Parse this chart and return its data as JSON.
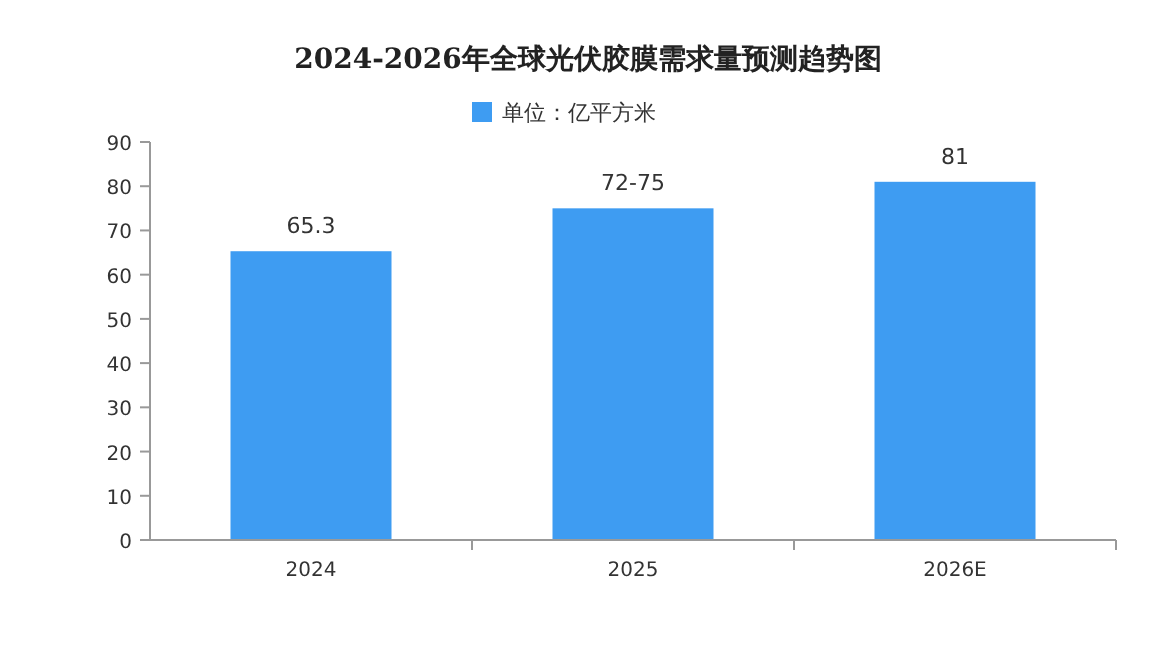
{
  "chart_data": {
    "type": "bar",
    "title": "2024-2026年全球光伏胶膜需求量预测趋势图",
    "categories": [
      "2024",
      "2025",
      "2026E"
    ],
    "series": [
      {
        "name": "单位：亿平方米",
        "color": "#3e9cf2",
        "values": [
          65.3,
          75,
          81
        ]
      }
    ],
    "value_labels": [
      "65.3",
      "72-75",
      "81"
    ],
    "ylim": [
      0,
      90
    ],
    "yticks": [
      0,
      10,
      20,
      30,
      40,
      50,
      60,
      70,
      80,
      90
    ],
    "legend": "top"
  }
}
